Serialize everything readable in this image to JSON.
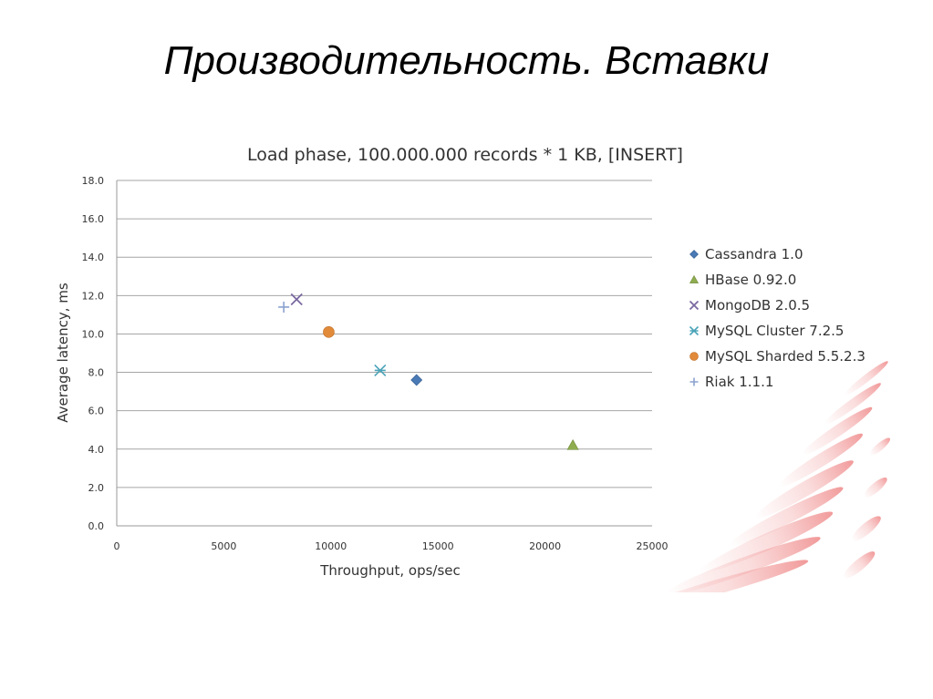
{
  "slide": {
    "title": "Производительность. Вставки"
  },
  "chart_data": {
    "type": "scatter",
    "title": "Load phase, 100.000.000 records * 1 KB, [INSERT]",
    "xlabel": "Throughput, ops/sec",
    "ylabel": "Average latency, ms",
    "xlim": [
      0,
      25000
    ],
    "ylim": [
      0,
      18
    ],
    "x_ticks": [
      "0",
      "5000",
      "10000",
      "15000",
      "20000",
      "25000"
    ],
    "y_ticks": [
      "0.0",
      "2.0",
      "4.0",
      "6.0",
      "8.0",
      "10.0",
      "12.0",
      "14.0",
      "16.0",
      "18.0"
    ],
    "grid": "horizontal",
    "legend_position": "right",
    "series": [
      {
        "name": "Cassandra 1.0",
        "marker": "diamond",
        "color": "#4a7ab5",
        "points": [
          {
            "x": 14000,
            "y": 7.6
          }
        ]
      },
      {
        "name": "HBase 0.92.0",
        "marker": "triangle",
        "color": "#8fad4f",
        "points": [
          {
            "x": 21300,
            "y": 4.2
          }
        ]
      },
      {
        "name": "MongoDB 2.0.5",
        "marker": "x",
        "color": "#7a68a0",
        "points": [
          {
            "x": 8400,
            "y": 11.8
          }
        ]
      },
      {
        "name": "MySQL Cluster 7.2.5",
        "marker": "asterisk",
        "color": "#4aa3b8",
        "points": [
          {
            "x": 12300,
            "y": 8.1
          }
        ]
      },
      {
        "name": "MySQL Sharded 5.5.2.3",
        "marker": "circle",
        "color": "#e08a3a",
        "points": [
          {
            "x": 9900,
            "y": 10.1
          }
        ]
      },
      {
        "name": "Riak 1.1.1",
        "marker": "plus",
        "color": "#8aa2cf",
        "points": [
          {
            "x": 7800,
            "y": 11.4
          }
        ]
      }
    ]
  }
}
